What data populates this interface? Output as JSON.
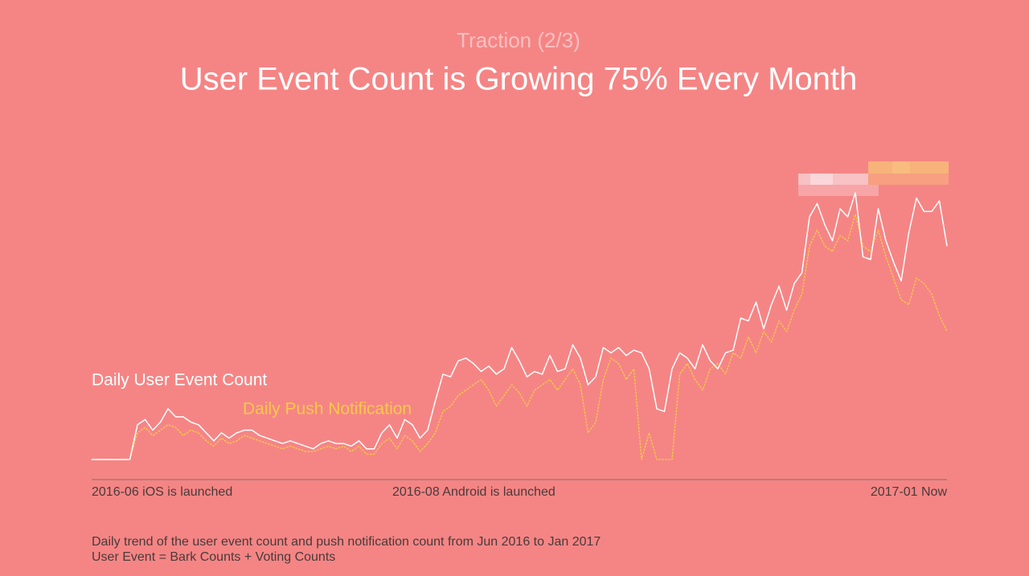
{
  "chart_data": {
    "type": "line",
    "supertitle": "Traction (2/3)",
    "title": "User Event Count is Growing 75% Every Month",
    "ylim": [
      0,
      100
    ],
    "series": [
      {
        "name": "Daily User Event Count",
        "color": "#ffffff",
        "line_style": "solid",
        "values": [
          0,
          0,
          0,
          0,
          0,
          0,
          13,
          15,
          11,
          14,
          19,
          16,
          16,
          14,
          13,
          10,
          7,
          10,
          8,
          10,
          11,
          11,
          9,
          8,
          7,
          6,
          7,
          6,
          5,
          4,
          6,
          7,
          6,
          6,
          5,
          7,
          4,
          4,
          10,
          13,
          8,
          15,
          13,
          8,
          11,
          22,
          32,
          31,
          37,
          38,
          36,
          33,
          35,
          32,
          34,
          42,
          37,
          31,
          33,
          32,
          39,
          33,
          34,
          43,
          38,
          28,
          31,
          42,
          40,
          42,
          39,
          41,
          40,
          34,
          19,
          18,
          34,
          40,
          38,
          34,
          43,
          37,
          34,
          40,
          41,
          53,
          52,
          59,
          49,
          58,
          65,
          56,
          66,
          70,
          91,
          96,
          88,
          82,
          94,
          91,
          100,
          76,
          75,
          94,
          82,
          74,
          67,
          85,
          98,
          93,
          93,
          97,
          80
        ]
      },
      {
        "name": "Daily Push Notification",
        "color": "#f7c948",
        "line_style": "dotted",
        "values": [
          0,
          0,
          0,
          0,
          0,
          0,
          10,
          12,
          9,
          11,
          13,
          12,
          9,
          11,
          10,
          7,
          5,
          8,
          6,
          7,
          9,
          8,
          7,
          6,
          5,
          4,
          5,
          4,
          3,
          3,
          4,
          5,
          4,
          5,
          3,
          5,
          2,
          2,
          6,
          8,
          4,
          9,
          7,
          3,
          6,
          10,
          18,
          20,
          24,
          26,
          28,
          30,
          26,
          20,
          24,
          28,
          25,
          20,
          26,
          28,
          30,
          26,
          30,
          34,
          28,
          10,
          14,
          30,
          38,
          36,
          30,
          34,
          0,
          10,
          0,
          0,
          0,
          32,
          36,
          30,
          26,
          34,
          36,
          32,
          40,
          38,
          46,
          40,
          48,
          44,
          52,
          48,
          56,
          62,
          80,
          86,
          80,
          78,
          84,
          82,
          92,
          80,
          78,
          86,
          76,
          68,
          60,
          58,
          68,
          66,
          62,
          54,
          48
        ]
      }
    ],
    "annotations": [
      "2016-06 iOS is launched",
      "2016-08 Android is launched",
      "2017-01 Now"
    ],
    "notes": [
      "Daily trend of the user event count and push notification count from Jun 2016 to Jan 2017",
      "User Event = Bark Counts + Voting Counts"
    ]
  }
}
